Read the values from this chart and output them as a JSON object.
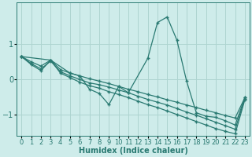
{
  "xlabel": "Humidex (Indice chaleur)",
  "xlim": [
    -0.5,
    23.5
  ],
  "ylim": [
    -1.6,
    2.2
  ],
  "yticks": [
    -1,
    0,
    1
  ],
  "xticks": [
    0,
    1,
    2,
    3,
    4,
    5,
    6,
    7,
    8,
    9,
    10,
    11,
    12,
    13,
    14,
    15,
    16,
    17,
    18,
    19,
    20,
    21,
    22,
    23
  ],
  "bg_color": "#ceecea",
  "grid_color": "#aed4d0",
  "line_color": "#2a7a72",
  "line1_x": [
    0,
    1,
    2,
    3,
    4,
    5,
    6,
    7,
    8,
    9,
    10,
    11,
    12,
    13,
    14,
    15,
    16,
    17,
    18,
    19,
    20,
    21,
    22,
    23
  ],
  "line1_y": [
    0.65,
    0.5,
    0.38,
    0.55,
    0.28,
    0.18,
    0.1,
    0.02,
    -0.05,
    -0.12,
    -0.2,
    -0.28,
    -0.35,
    -0.43,
    -0.5,
    -0.58,
    -0.65,
    -0.73,
    -0.8,
    -0.88,
    -0.95,
    -1.03,
    -1.1,
    -0.52
  ],
  "line2_x": [
    0,
    1,
    2,
    3,
    4,
    5,
    6,
    7,
    8,
    9,
    10,
    11,
    12,
    13,
    14,
    15,
    16,
    17,
    18,
    19,
    20,
    21,
    22,
    23
  ],
  "line2_y": [
    0.65,
    0.45,
    0.3,
    0.52,
    0.22,
    0.1,
    0.0,
    -0.1,
    -0.15,
    -0.22,
    -0.3,
    -0.38,
    -0.48,
    -0.57,
    -0.65,
    -0.73,
    -0.83,
    -0.93,
    -1.02,
    -1.12,
    -1.22,
    -1.32,
    -1.42,
    -0.55
  ],
  "line3_x": [
    0,
    1,
    2,
    3,
    4,
    5,
    6,
    7,
    8,
    9,
    10,
    11,
    12,
    13,
    14,
    15,
    16,
    17,
    18,
    19,
    20,
    21,
    22,
    23
  ],
  "line3_y": [
    0.65,
    0.42,
    0.25,
    0.55,
    0.18,
    0.05,
    -0.08,
    -0.18,
    -0.25,
    -0.35,
    -0.43,
    -0.52,
    -0.62,
    -0.72,
    -0.8,
    -0.9,
    -1.0,
    -1.1,
    -1.2,
    -1.3,
    -1.4,
    -1.48,
    -1.55,
    -0.58
  ],
  "spike_x": [
    0,
    3,
    5,
    6,
    7,
    8,
    9,
    10,
    11,
    13,
    14,
    15,
    16,
    17,
    18,
    19,
    20,
    21,
    22,
    23
  ],
  "spike_y": [
    0.65,
    0.55,
    0.18,
    0.1,
    -0.28,
    -0.4,
    -0.72,
    -0.2,
    -0.38,
    0.6,
    1.62,
    1.78,
    1.12,
    -0.05,
    -0.95,
    -1.05,
    -1.08,
    -1.18,
    -1.3,
    -0.52
  ],
  "fontsize_xlabel": 7,
  "fontsize_ticks": 6
}
